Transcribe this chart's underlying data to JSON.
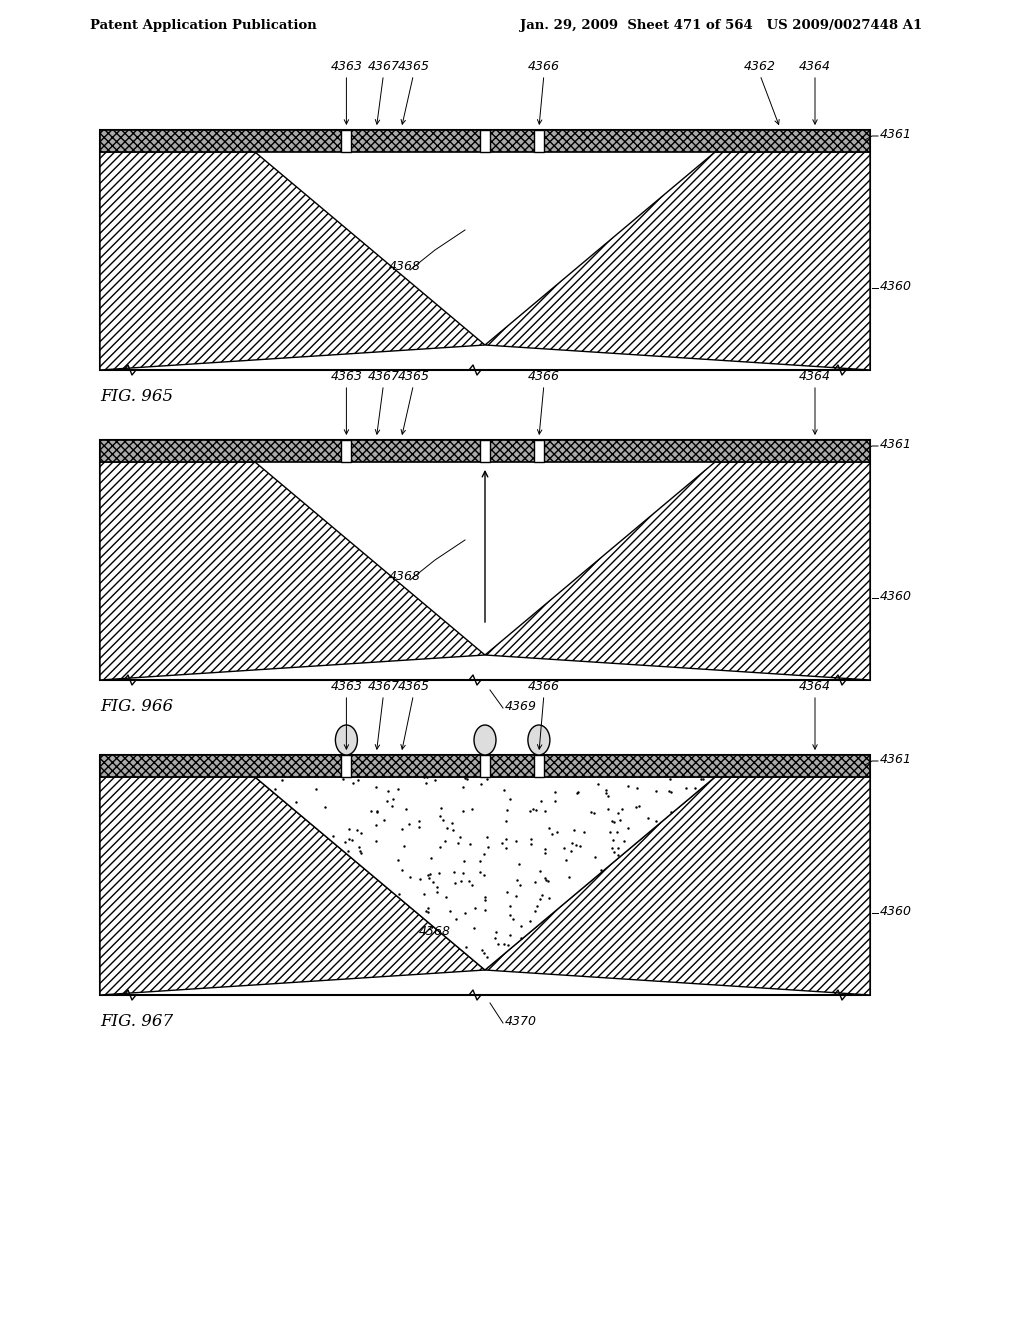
{
  "header_left": "Patent Application Publication",
  "header_right": "Jan. 29, 2009  Sheet 471 of 564   US 2009/0027448 A1",
  "fig_labels": [
    "FIG. 965",
    "FIG. 966",
    "FIG. 967"
  ],
  "ref_numbers_fig1": [
    "4363",
    "4367",
    "4365",
    "4366",
    "4362",
    "4364",
    "4361",
    "4360",
    "4368"
  ],
  "ref_numbers_fig2": [
    "4363",
    "4367",
    "4365",
    "4366",
    "4364",
    "4361",
    "4360",
    "4368",
    "4369"
  ],
  "ref_numbers_fig3": [
    "4363",
    "4367",
    "4365",
    "4366",
    "4364",
    "4361",
    "4360",
    "4368",
    "4370"
  ],
  "bg_color": "#ffffff",
  "hatch_color": "#000000",
  "line_color": "#000000"
}
